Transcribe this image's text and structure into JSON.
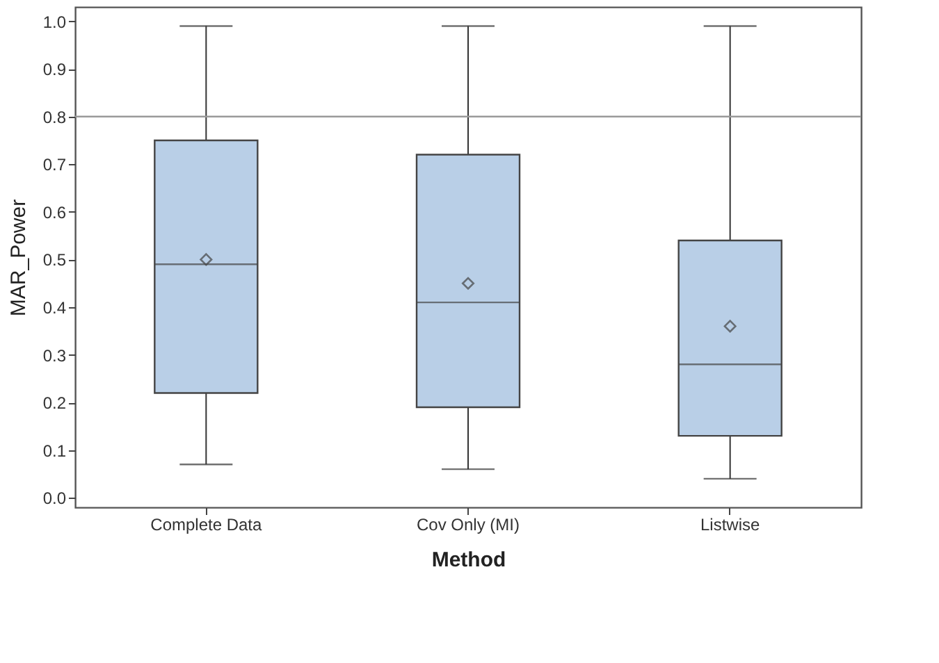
{
  "chart_data": {
    "type": "box",
    "xlabel": "Method",
    "ylabel": "MAR_Power",
    "categories": [
      "Complete Data",
      "Cov Only (MI)",
      "Listwise"
    ],
    "color": "#b9cfe7",
    "boxes": [
      {
        "low": 0.07,
        "q1": 0.22,
        "median": 0.49,
        "q3": 0.75,
        "high": 0.99,
        "mean": 0.5
      },
      {
        "low": 0.06,
        "q1": 0.19,
        "median": 0.41,
        "q3": 0.72,
        "high": 0.99,
        "mean": 0.45
      },
      {
        "low": 0.04,
        "q1": 0.13,
        "median": 0.28,
        "q3": 0.54,
        "high": 0.99,
        "mean": 0.36
      }
    ],
    "ylim": [
      -0.02,
      1.03
    ],
    "yticks": [
      {
        "value": 0,
        "label": "0.0"
      },
      {
        "value": 0.1,
        "label": "0.1"
      },
      {
        "value": 0.2,
        "label": "0.2"
      },
      {
        "value": 0.3,
        "label": "0.3"
      },
      {
        "value": 0.4,
        "label": "0.4"
      },
      {
        "value": 0.5,
        "label": "0.5"
      },
      {
        "value": 0.6,
        "label": "0.6"
      },
      {
        "value": 0.7,
        "label": "0.7"
      },
      {
        "value": 0.8,
        "label": "0.8"
      },
      {
        "value": 0.9,
        "label": "0.9"
      },
      {
        "value": 1.0,
        "label": "1.0"
      }
    ],
    "ref_lines": [
      {
        "axis": "y",
        "value": 0.8,
        "color": "#999999"
      }
    ],
    "marker": "diamond",
    "grid": false
  }
}
